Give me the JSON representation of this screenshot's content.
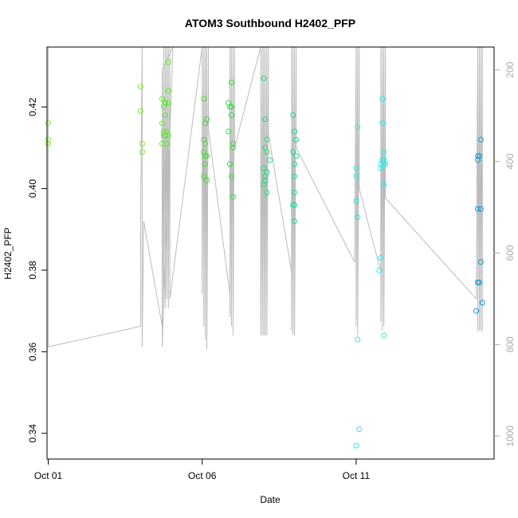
{
  "chart_data": {
    "type": "scatter",
    "title": "ATOM3 Southbound H2402_PFP",
    "xlabel": "Date",
    "ylabel": "H2402_PFP",
    "x_unit": "days (October)",
    "xlim": [
      0.96,
      15.48
    ],
    "ylim": [
      0.3337,
      0.4347
    ],
    "y2lim": [
      1050,
      150
    ],
    "x_ticks": [
      {
        "value": 1,
        "label": "Oct 01"
      },
      {
        "value": 6,
        "label": "Oct 06"
      },
      {
        "value": 11,
        "label": "Oct 11"
      }
    ],
    "y_ticks": [
      {
        "value": 0.34,
        "label": "0.34"
      },
      {
        "value": 0.36,
        "label": "0.36"
      },
      {
        "value": 0.38,
        "label": "0.38"
      },
      {
        "value": 0.4,
        "label": "0.40"
      },
      {
        "value": 0.42,
        "label": "0.42"
      }
    ],
    "y2_ticks": [
      {
        "value": 200,
        "label": "200"
      },
      {
        "value": 400,
        "label": "400"
      },
      {
        "value": 600,
        "label": "600"
      },
      {
        "value": 800,
        "label": "800"
      },
      {
        "value": 1000,
        "label": "1000"
      }
    ],
    "grid": false,
    "legend": "none",
    "colors": {
      "points_early": "#66ee22",
      "points_mid": "#22dd66",
      "points_late": "#22eeee",
      "points_end": "#1188dd",
      "line": "#bbbbbb"
    },
    "points": [
      [
        1.0,
        0.416,
        "#88ee22"
      ],
      [
        1.0,
        0.412,
        "#88ee22"
      ],
      [
        1.0,
        0.411,
        "#88ee22"
      ],
      [
        4.0,
        0.425,
        "#77ee22"
      ],
      [
        4.0,
        0.419,
        "#77ee22"
      ],
      [
        4.05,
        0.411,
        "#77ee22"
      ],
      [
        4.05,
        0.409,
        "#77ee22"
      ],
      [
        4.7,
        0.422,
        "#55ee22"
      ],
      [
        4.75,
        0.42,
        "#55ee22"
      ],
      [
        4.8,
        0.421,
        "#55ee22"
      ],
      [
        4.7,
        0.416,
        "#55ee22"
      ],
      [
        4.75,
        0.414,
        "#55ee22"
      ],
      [
        4.8,
        0.413,
        "#55ee22"
      ],
      [
        4.85,
        0.414,
        "#55ee22"
      ],
      [
        4.8,
        0.418,
        "#55ee22"
      ],
      [
        4.9,
        0.431,
        "#55ee22"
      ],
      [
        4.9,
        0.424,
        "#55ee22"
      ],
      [
        4.9,
        0.421,
        "#55ee22"
      ],
      [
        4.7,
        0.411,
        "#55ee22"
      ],
      [
        4.85,
        0.411,
        "#55ee22"
      ],
      [
        4.8,
        0.421,
        "#55ee22"
      ],
      [
        4.9,
        0.413,
        "#55ee22"
      ],
      [
        4.75,
        0.413,
        "#55ee22"
      ],
      [
        6.05,
        0.422,
        "#44dd33"
      ],
      [
        6.1,
        0.416,
        "#44dd33"
      ],
      [
        6.15,
        0.417,
        "#44dd33"
      ],
      [
        6.05,
        0.412,
        "#44dd33"
      ],
      [
        6.1,
        0.411,
        "#44dd33"
      ],
      [
        6.05,
        0.409,
        "#44dd33"
      ],
      [
        6.1,
        0.408,
        "#44dd33"
      ],
      [
        6.15,
        0.408,
        "#44dd33"
      ],
      [
        6.1,
        0.406,
        "#44dd33"
      ],
      [
        6.05,
        0.403,
        "#44dd33"
      ],
      [
        6.15,
        0.402,
        "#44dd33"
      ],
      [
        6.85,
        0.421,
        "#33dd44"
      ],
      [
        6.9,
        0.42,
        "#33dd44"
      ],
      [
        6.95,
        0.42,
        "#33dd44"
      ],
      [
        6.95,
        0.426,
        "#33dd44"
      ],
      [
        6.95,
        0.418,
        "#33dd44"
      ],
      [
        6.85,
        0.414,
        "#33dd44"
      ],
      [
        7.0,
        0.411,
        "#33dd44"
      ],
      [
        7.0,
        0.41,
        "#33dd44"
      ],
      [
        6.9,
        0.406,
        "#33dd44"
      ],
      [
        6.95,
        0.403,
        "#33dd44"
      ],
      [
        7.0,
        0.398,
        "#33dd44"
      ],
      [
        8.0,
        0.427,
        "#22dd77"
      ],
      [
        8.05,
        0.417,
        "#22dd77"
      ],
      [
        8.1,
        0.412,
        "#22dd77"
      ],
      [
        8.05,
        0.41,
        "#22dd77"
      ],
      [
        8.1,
        0.409,
        "#22dd77"
      ],
      [
        8.2,
        0.407,
        "#22dd77"
      ],
      [
        8.0,
        0.405,
        "#22dd77"
      ],
      [
        8.1,
        0.404,
        "#22dd77"
      ],
      [
        8.05,
        0.403,
        "#22dd77"
      ],
      [
        8.05,
        0.402,
        "#22dd77"
      ],
      [
        8.0,
        0.401,
        "#22dd77"
      ],
      [
        8.1,
        0.399,
        "#22dd77"
      ],
      [
        8.95,
        0.418,
        "#22dd99"
      ],
      [
        9.0,
        0.414,
        "#22dd99"
      ],
      [
        9.05,
        0.412,
        "#22dd99"
      ],
      [
        9.05,
        0.412,
        "#22dd99"
      ],
      [
        8.95,
        0.409,
        "#22dd99"
      ],
      [
        9.05,
        0.408,
        "#22dd99"
      ],
      [
        9.0,
        0.406,
        "#22dd99"
      ],
      [
        9.0,
        0.403,
        "#22dd99"
      ],
      [
        9.0,
        0.399,
        "#22dd99"
      ],
      [
        8.95,
        0.396,
        "#22dd99"
      ],
      [
        9.0,
        0.396,
        "#22dd99"
      ],
      [
        9.0,
        0.392,
        "#22dd99"
      ],
      [
        11.05,
        0.415,
        "#22eedd"
      ],
      [
        11.0,
        0.405,
        "#22eedd"
      ],
      [
        11.0,
        0.403,
        "#22eedd"
      ],
      [
        11.0,
        0.397,
        "#22eedd"
      ],
      [
        11.05,
        0.393,
        "#22eedd"
      ],
      [
        11.05,
        0.363,
        "#22eedd"
      ],
      [
        11.1,
        0.341,
        "#22eedd"
      ],
      [
        11.0,
        0.337,
        "#22eedd"
      ],
      [
        11.85,
        0.422,
        "#22eeee"
      ],
      [
        11.85,
        0.416,
        "#22eeee"
      ],
      [
        11.9,
        0.409,
        "#22eeee"
      ],
      [
        11.85,
        0.407,
        "#22eeee"
      ],
      [
        11.9,
        0.407,
        "#22eeee"
      ],
      [
        11.8,
        0.406,
        "#22eeee"
      ],
      [
        11.9,
        0.406,
        "#22eeee"
      ],
      [
        11.95,
        0.406,
        "#22eeee"
      ],
      [
        11.8,
        0.405,
        "#22eeee"
      ],
      [
        11.9,
        0.401,
        "#22eeee"
      ],
      [
        11.8,
        0.383,
        "#22eeee"
      ],
      [
        11.75,
        0.38,
        "#22eeee"
      ],
      [
        11.9,
        0.364,
        "#22eeee"
      ],
      [
        14.95,
        0.408,
        "#1199dd"
      ],
      [
        14.95,
        0.407,
        "#1199dd"
      ],
      [
        15.0,
        0.408,
        "#1199dd"
      ],
      [
        15.05,
        0.412,
        "#1199dd"
      ],
      [
        14.95,
        0.395,
        "#1199dd"
      ],
      [
        15.05,
        0.395,
        "#1199dd"
      ],
      [
        15.05,
        0.382,
        "#1199dd"
      ],
      [
        14.95,
        0.377,
        "#1199dd"
      ],
      [
        15.0,
        0.377,
        "#1199dd"
      ],
      [
        14.9,
        0.37,
        "#1199dd"
      ],
      [
        15.1,
        0.372,
        "#1199dd"
      ]
    ],
    "secondary_line_y2": [
      [
        1.0,
        150
      ],
      [
        1.0,
        805
      ],
      [
        4.0,
        760
      ],
      [
        4.0,
        505
      ],
      [
        4.05,
        150
      ],
      [
        4.05,
        805
      ],
      [
        4.1,
        530
      ],
      [
        4.7,
        760
      ],
      [
        4.7,
        200
      ],
      [
        5.05,
        150
      ],
      [
        4.7,
        805
      ],
      [
        4.75,
        150
      ],
      [
        4.75,
        720
      ],
      [
        4.8,
        150
      ],
      [
        4.8,
        720
      ],
      [
        4.85,
        150
      ],
      [
        4.85,
        700
      ],
      [
        4.9,
        150
      ],
      [
        4.9,
        720
      ],
      [
        4.95,
        150
      ],
      [
        4.95,
        700
      ],
      [
        6.0,
        150
      ],
      [
        6.0,
        690
      ],
      [
        6.05,
        150
      ],
      [
        6.05,
        760
      ],
      [
        6.1,
        150
      ],
      [
        6.1,
        790
      ],
      [
        6.15,
        150
      ],
      [
        6.15,
        810
      ],
      [
        6.2,
        150
      ],
      [
        6.2,
        330
      ],
      [
        6.9,
        690
      ],
      [
        6.9,
        150
      ],
      [
        6.9,
        740
      ],
      [
        6.95,
        150
      ],
      [
        6.95,
        760
      ],
      [
        7.0,
        150
      ],
      [
        7.0,
        780
      ],
      [
        7.05,
        150
      ],
      [
        7.05,
        370
      ],
      [
        7.9,
        150
      ],
      [
        7.9,
        780
      ],
      [
        7.95,
        150
      ],
      [
        7.95,
        780
      ],
      [
        8.0,
        150
      ],
      [
        8.0,
        780
      ],
      [
        8.05,
        150
      ],
      [
        8.05,
        780
      ],
      [
        8.1,
        150
      ],
      [
        8.1,
        780
      ],
      [
        8.15,
        150
      ],
      [
        8.15,
        340
      ],
      [
        8.9,
        640
      ],
      [
        8.9,
        150
      ],
      [
        8.9,
        770
      ],
      [
        8.95,
        150
      ],
      [
        8.95,
        780
      ],
      [
        9.0,
        150
      ],
      [
        9.0,
        780
      ],
      [
        9.05,
        150
      ],
      [
        9.05,
        370
      ],
      [
        10.95,
        620
      ],
      [
        11.0,
        150
      ],
      [
        11.0,
        760
      ],
      [
        11.05,
        150
      ],
      [
        11.05,
        780
      ],
      [
        11.1,
        150
      ],
      [
        11.1,
        460
      ],
      [
        11.8,
        640
      ],
      [
        11.8,
        150
      ],
      [
        11.8,
        750
      ],
      [
        11.85,
        150
      ],
      [
        11.85,
        770
      ],
      [
        11.9,
        150
      ],
      [
        11.9,
        760
      ],
      [
        11.95,
        150
      ],
      [
        11.95,
        480
      ],
      [
        14.9,
        700
      ],
      [
        14.95,
        150
      ],
      [
        14.95,
        770
      ],
      [
        15.0,
        150
      ],
      [
        15.0,
        770
      ],
      [
        15.05,
        150
      ],
      [
        15.05,
        770
      ],
      [
        15.1,
        150
      ],
      [
        15.1,
        770
      ]
    ]
  }
}
